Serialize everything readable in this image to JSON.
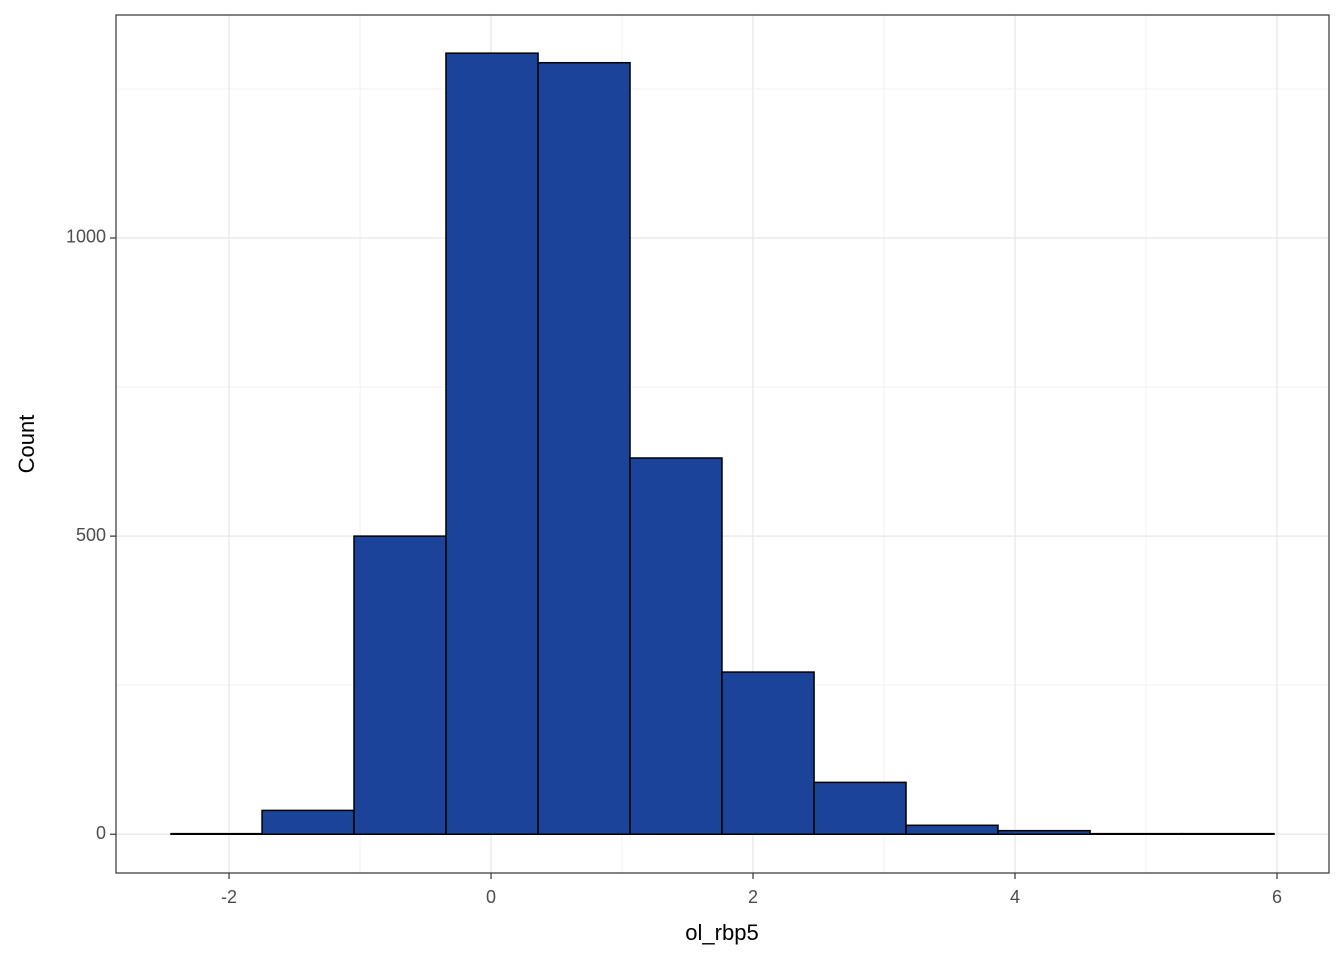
{
  "chart_data": {
    "type": "histogram",
    "x_label": "ol_rbp5",
    "y_label": "Count",
    "bins": [
      -2.443,
      -1.748,
      -1.046,
      -0.344,
      0.359,
      1.061,
      1.763,
      2.466,
      3.168,
      3.87,
      4.573,
      5.275,
      5.977
    ],
    "values": [
      1,
      40,
      500,
      1310,
      1294,
      631,
      272,
      87,
      15,
      6,
      1,
      1
    ],
    "color": "#1a4399",
    "edge_color": "#000000",
    "xlim": [
      -2.863,
      6.397
    ],
    "xticks": [
      -2,
      0,
      2,
      4,
      6
    ],
    "ylim": [
      -65,
      1374
    ],
    "yticks": [
      0,
      500,
      1000
    ],
    "grid": true
  }
}
